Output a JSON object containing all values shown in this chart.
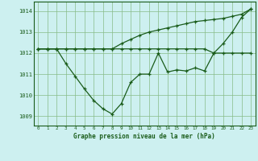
{
  "title": "Graphe pression niveau de la mer (hPa)",
  "bg_color": "#cdf0f0",
  "line_color": "#1a5c1a",
  "grid_color": "#88bb88",
  "x_values": [
    0,
    1,
    2,
    3,
    4,
    5,
    6,
    7,
    8,
    9,
    10,
    11,
    12,
    13,
    14,
    15,
    16,
    17,
    18,
    19,
    20,
    21,
    22,
    23
  ],
  "y_main": [
    1012.2,
    1012.2,
    1012.2,
    1011.5,
    1010.9,
    1010.3,
    1009.75,
    1009.35,
    1009.1,
    1009.6,
    1010.6,
    1011.0,
    1011.0,
    1012.0,
    1011.1,
    1011.2,
    1011.15,
    1011.3,
    1011.15,
    1012.0,
    1012.45,
    1013.0,
    1013.7,
    1014.1
  ],
  "y_line2": [
    1012.2,
    1012.2,
    1012.2,
    1012.2,
    1012.2,
    1012.2,
    1012.2,
    1012.2,
    1012.2,
    1012.2,
    1012.2,
    1012.2,
    1012.2,
    1012.2,
    1012.2,
    1012.2,
    1012.2,
    1012.2,
    1012.2,
    1012.0,
    1012.0,
    1012.0,
    1012.0,
    1012.0
  ],
  "y_line3": [
    1012.2,
    1012.2,
    1012.2,
    1012.2,
    1012.2,
    1012.2,
    1012.2,
    1012.2,
    1012.2,
    1012.45,
    1012.65,
    1012.85,
    1013.0,
    1013.1,
    1013.2,
    1013.3,
    1013.4,
    1013.5,
    1013.55,
    1013.6,
    1013.65,
    1013.75,
    1013.85,
    1014.1
  ],
  "ylim": [
    1008.55,
    1014.45
  ],
  "yticks": [
    1009,
    1010,
    1011,
    1012,
    1013,
    1014
  ],
  "xlim": [
    -0.5,
    23.5
  ],
  "figsize": [
    3.2,
    2.0
  ],
  "dpi": 100
}
